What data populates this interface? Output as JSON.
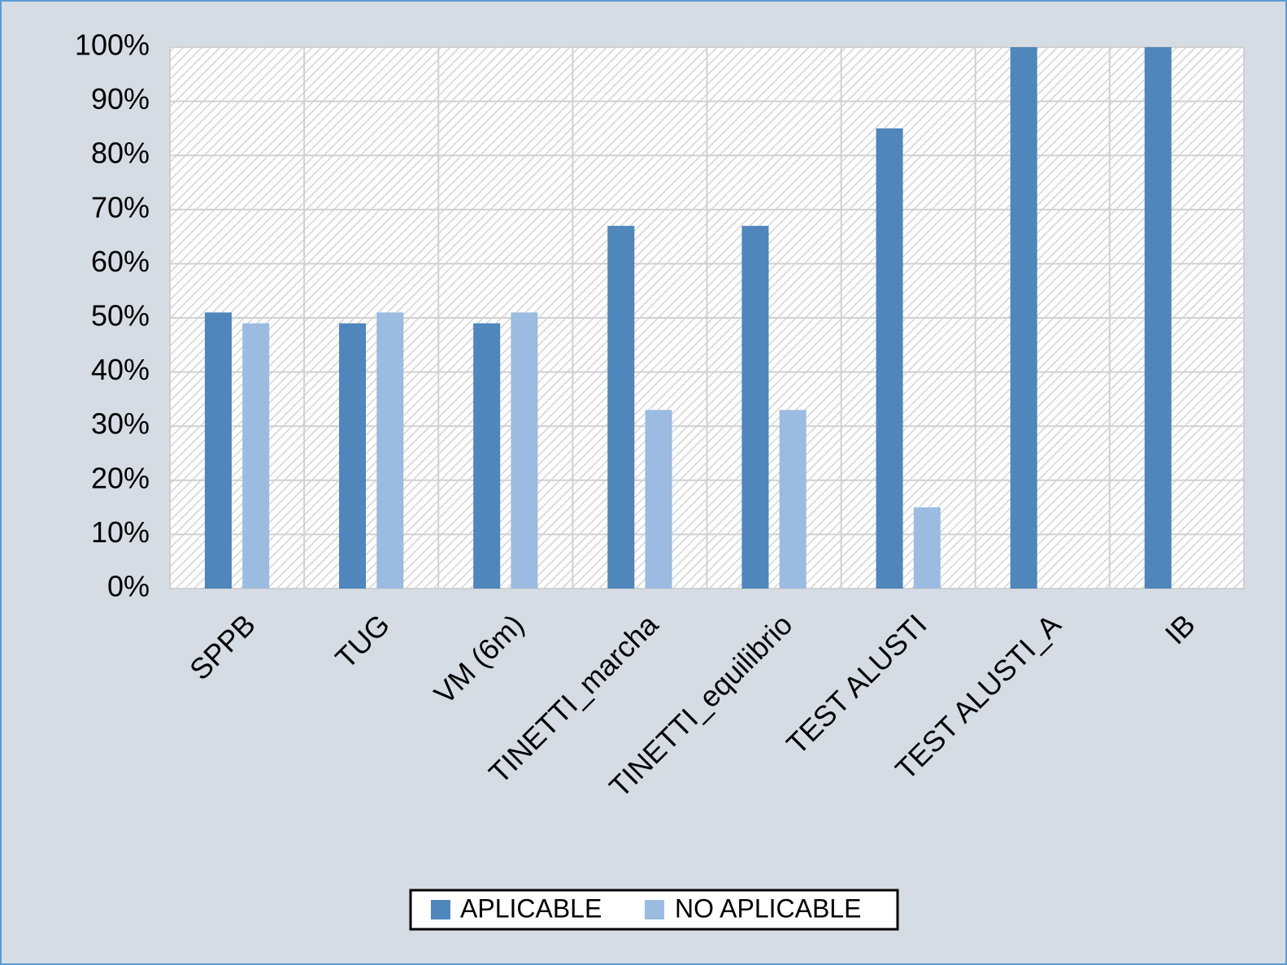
{
  "chart_data": {
    "type": "bar",
    "categories": [
      "SPPB",
      "TUG",
      "VM (6m)",
      "TINETTI_marcha",
      "TINETTI_equilibrio",
      "TEST ALUSTI",
      "TEST ALUSTI_A",
      "IB"
    ],
    "series": [
      {
        "name": "APLICABLE",
        "color": "#4f86bb",
        "values": [
          51,
          49,
          49,
          67,
          67,
          85,
          100,
          100
        ]
      },
      {
        "name": "NO APLICABLE",
        "color": "#9bbbe0",
        "values": [
          49,
          51,
          51,
          33,
          33,
          15,
          0,
          0
        ]
      }
    ],
    "ylim": [
      0,
      100
    ],
    "yticks": [
      {
        "value": 0,
        "label": "0%"
      },
      {
        "value": 10,
        "label": "10%"
      },
      {
        "value": 20,
        "label": "20%"
      },
      {
        "value": 30,
        "label": "30%"
      },
      {
        "value": 40,
        "label": "40%"
      },
      {
        "value": 50,
        "label": "50%"
      },
      {
        "value": 60,
        "label": "60%"
      },
      {
        "value": 70,
        "label": "70%"
      },
      {
        "value": 80,
        "label": "80%"
      },
      {
        "value": 90,
        "label": "90%"
      },
      {
        "value": 100,
        "label": "100%"
      }
    ],
    "grid": true,
    "legend": "bottom"
  }
}
